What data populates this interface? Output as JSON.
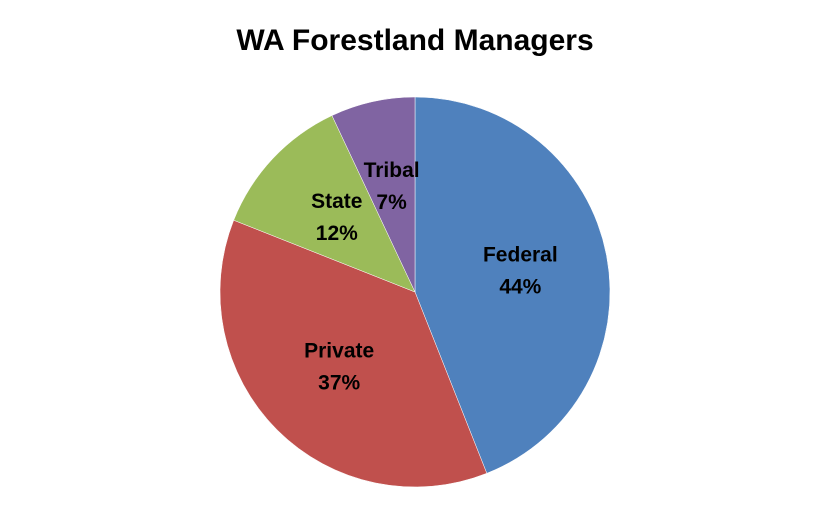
{
  "chart_data": {
    "type": "pie",
    "title": "WA Forestland Managers",
    "categories": [
      "Federal",
      "Private",
      "State",
      "Tribal"
    ],
    "values": [
      44,
      37,
      12,
      7
    ],
    "value_labels": [
      "44%",
      "37%",
      "12%",
      "7%"
    ],
    "colors": [
      "#4f81bd",
      "#c0504d",
      "#9bbb59",
      "#8064a2"
    ]
  }
}
